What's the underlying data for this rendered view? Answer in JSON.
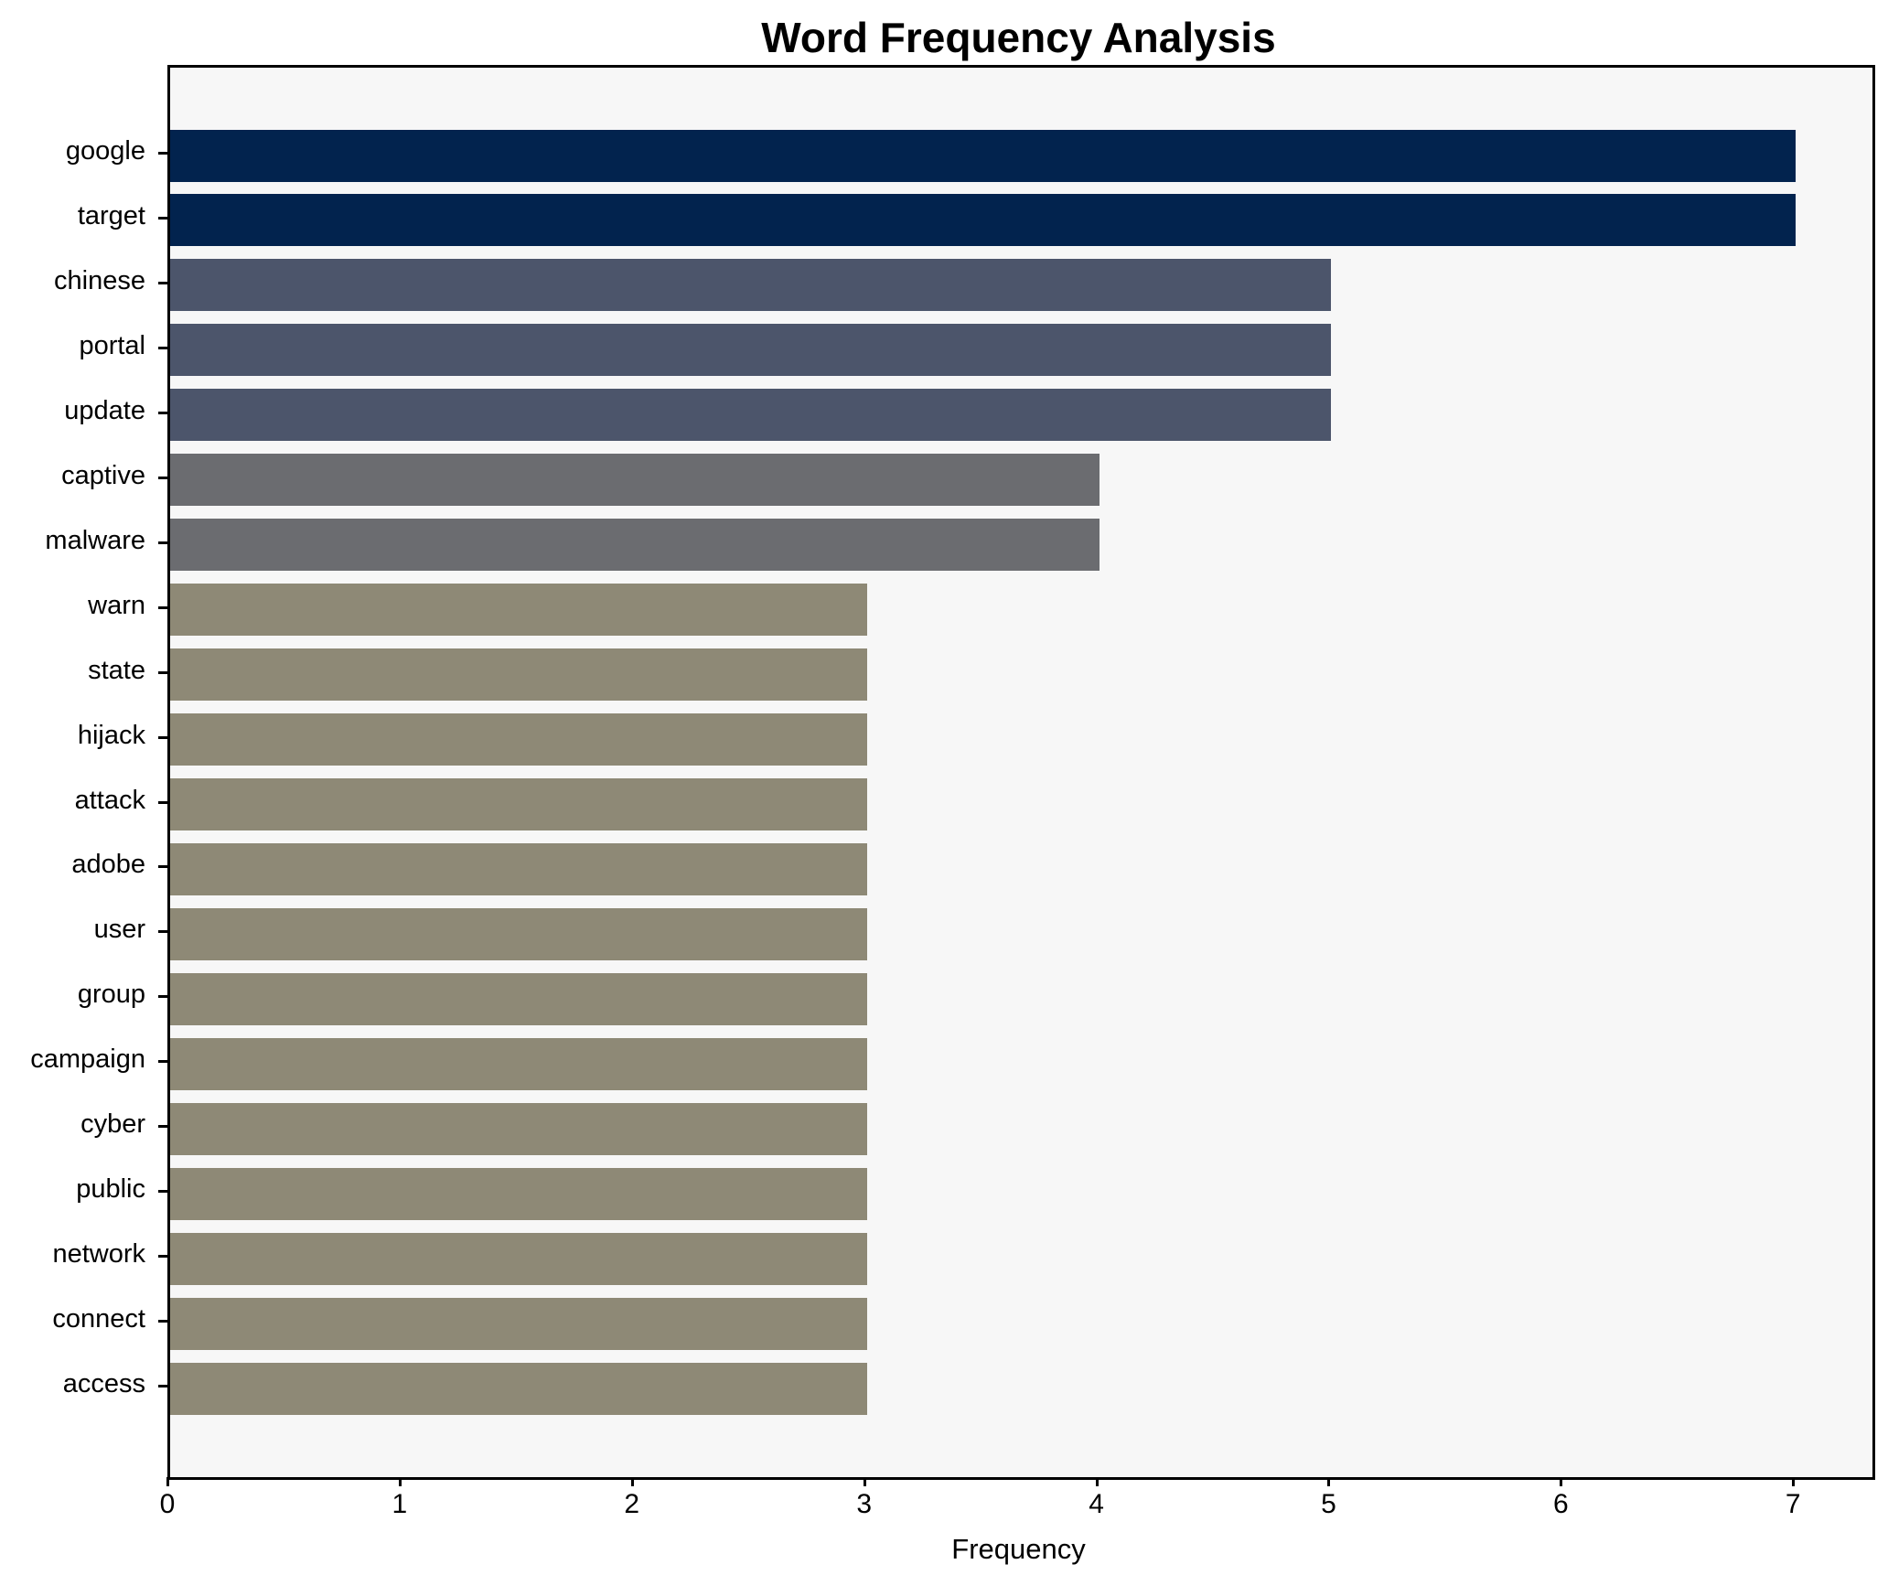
{
  "chart": {
    "title": "Word Frequency Analysis",
    "xlabel": "Frequency"
  },
  "chart_data": {
    "type": "bar",
    "orientation": "horizontal",
    "title": "Word Frequency Analysis",
    "xlabel": "Frequency",
    "ylabel": "",
    "categories": [
      "google",
      "target",
      "chinese",
      "portal",
      "update",
      "captive",
      "malware",
      "warn",
      "state",
      "hijack",
      "attack",
      "adobe",
      "user",
      "group",
      "campaign",
      "cyber",
      "public",
      "network",
      "connect",
      "access"
    ],
    "values": [
      7,
      7,
      5,
      5,
      5,
      4,
      4,
      3,
      3,
      3,
      3,
      3,
      3,
      3,
      3,
      3,
      3,
      3,
      3,
      3
    ],
    "bar_colors": [
      "#02234e",
      "#02234e",
      "#4c556b",
      "#4c556b",
      "#4c556b",
      "#6b6c70",
      "#6b6c70",
      "#8e8976",
      "#8e8976",
      "#8e8976",
      "#8e8976",
      "#8e8976",
      "#8e8976",
      "#8e8976",
      "#8e8976",
      "#8e8976",
      "#8e8976",
      "#8e8976",
      "#8e8976",
      "#8e8976"
    ],
    "xticks": [
      "0",
      "1",
      "2",
      "3",
      "4",
      "5",
      "6",
      "7"
    ],
    "xlim": [
      0,
      7.33
    ],
    "grid": false,
    "legend": null,
    "plot_background": "#f7f7f7",
    "figure_background": "#ffffff"
  }
}
